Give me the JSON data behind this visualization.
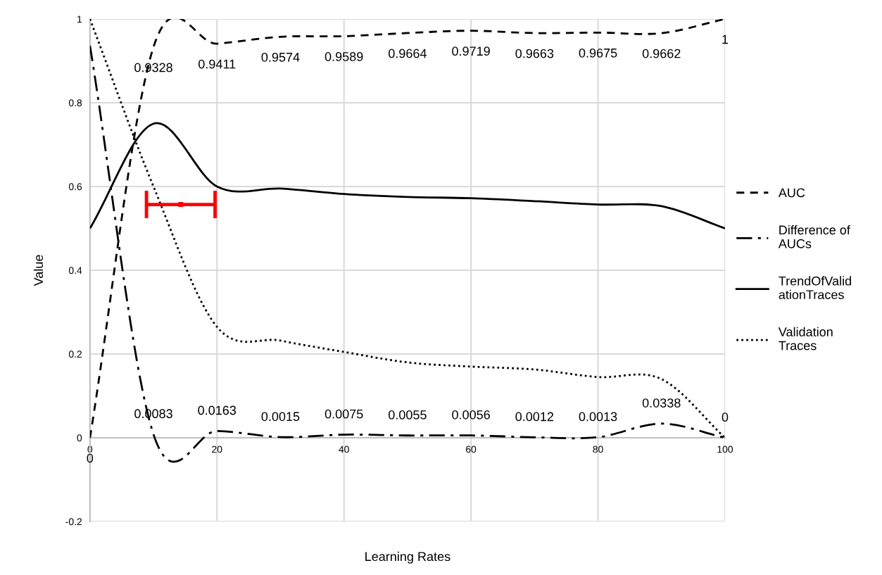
{
  "chart_data": {
    "type": "line",
    "xlabel": "Learning Rates",
    "ylabel": "Value",
    "x": [
      0,
      10,
      20,
      30,
      40,
      50,
      60,
      70,
      80,
      90,
      100
    ],
    "xlim": [
      0,
      100
    ],
    "xticks": [
      0,
      20,
      40,
      60,
      80,
      100
    ],
    "ylim": [
      -0.2,
      1
    ],
    "yticks": [
      -0.2,
      0,
      0.2,
      0.4,
      0.6,
      0.8,
      1
    ],
    "grid": true,
    "legend": "right",
    "series": [
      {
        "name": "AUC",
        "color": "#000000",
        "line_style": "dashed",
        "values": [
          0,
          0.9328,
          0.9411,
          0.9574,
          0.9589,
          0.9664,
          0.9719,
          0.9663,
          0.9675,
          0.9662,
          1
        ],
        "value_labels": [
          "0",
          "0.9328",
          "0.9411",
          "0.9574",
          "0.9589",
          "0.9664",
          "0.9719",
          "0.9663",
          "0.9675",
          "0.9662",
          "1"
        ]
      },
      {
        "name": "Difference of AUCs",
        "color": "#000000",
        "line_style": "dashdot",
        "values": [
          0.936,
          0.0083,
          0.0163,
          0.0015,
          0.0075,
          0.0055,
          0.0056,
          0.0012,
          0.0013,
          0.0338,
          0
        ],
        "value_labels": [
          null,
          "0.0083",
          "0.0163",
          "0.0015",
          "0.0075",
          "0.0055",
          "0.0056",
          "0.0012",
          "0.0013",
          "0.0338",
          "0"
        ]
      },
      {
        "name": "TrendOfValidationTraces",
        "color": "#000000",
        "line_style": "solid",
        "values": [
          0.5,
          0.75,
          0.6,
          0.595,
          0.582,
          0.575,
          0.572,
          0.565,
          0.557,
          0.553,
          0.5
        ]
      },
      {
        "name": "Validation Traces",
        "color": "#000000",
        "line_style": "dotted",
        "values": [
          1,
          0.6,
          0.265,
          0.232,
          0.205,
          0.18,
          0.17,
          0.163,
          0.145,
          0.14,
          0
        ]
      },
      {
        "type": "scatter",
        "color": "#ff0000",
        "marker": "square",
        "x": [
          14.3
        ],
        "values": [
          0.557
        ],
        "xerrors": [
          5.4
        ]
      }
    ]
  }
}
